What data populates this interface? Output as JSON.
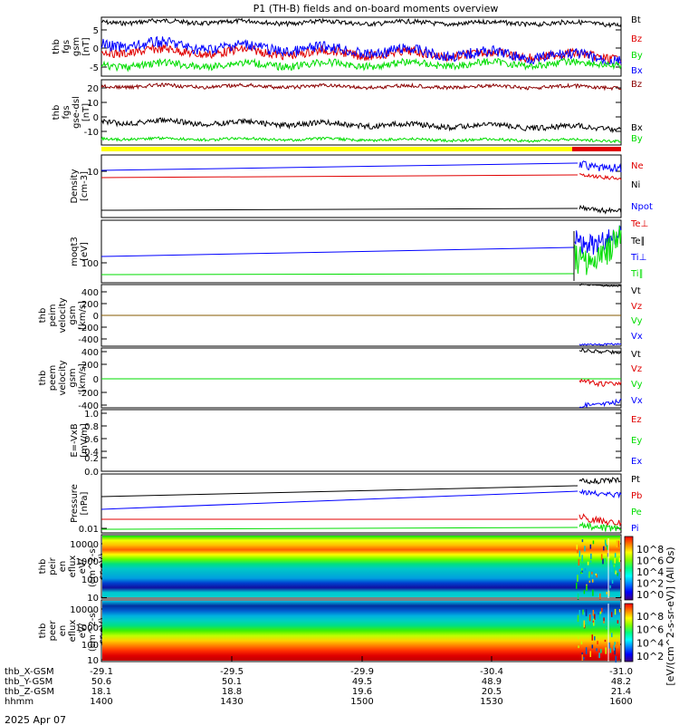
{
  "title": "P1 (TH-B) fields and on-board moments overview",
  "date_label": "2025 Apr 07",
  "colors": {
    "black": "#000000",
    "red": "#e00000",
    "green": "#00dd00",
    "blue": "#0000ff",
    "darkred": "#8b0000",
    "yellow": "#ffff00"
  },
  "chart_data": [
    {
      "type": "line",
      "ylabel": [
        "thb",
        "fgs",
        "gsm",
        "[nT]"
      ],
      "ylim": [
        -6,
        9
      ],
      "ticks": [
        "5",
        "0",
        "-5"
      ],
      "series": [
        {
          "name": "Bt",
          "color": "black",
          "level": 7
        },
        {
          "name": "Bz",
          "color": "red",
          "level": 0
        },
        {
          "name": "By",
          "color": "green",
          "level": -4
        },
        {
          "name": "Bx",
          "color": "blue",
          "level": -1
        }
      ]
    },
    {
      "type": "line",
      "ylabel": [
        "thb",
        "fgs",
        "gse-dsl",
        "[nT]"
      ],
      "ylim": [
        -19,
        27
      ],
      "ticks": [
        "20",
        "10",
        "0",
        "-10"
      ],
      "series": [
        {
          "name": "Bz",
          "color": "darkred",
          "level": 22
        },
        {
          "name": "Bx",
          "color": "black",
          "level": -7
        },
        {
          "name": "By",
          "color": "green",
          "level": -16
        }
      ]
    },
    {
      "type": "line",
      "ylabel": [
        "Density",
        "[cm-3]"
      ],
      "scale": "log",
      "ticks": [
        "10"
      ],
      "series": [
        {
          "name": "Ne",
          "color": "red",
          "level": 8
        },
        {
          "name": "Ni",
          "color": "black",
          "level": 2
        },
        {
          "name": "Npot",
          "color": "blue",
          "level": 10
        }
      ]
    },
    {
      "type": "line",
      "ylabel": [
        "moqt3",
        "[eV]"
      ],
      "scale": "log",
      "ticks": [
        "100"
      ],
      "series": [
        {
          "name": "Te⊥",
          "color": "red"
        },
        {
          "name": "Te∥",
          "color": "black"
        },
        {
          "name": "Ti⊥",
          "color": "blue",
          "level": 110
        },
        {
          "name": "Ti∥",
          "color": "green",
          "level": 80
        }
      ]
    },
    {
      "type": "line",
      "ylabel": [
        "thb",
        "peim",
        "velocity",
        "gsm",
        "[km/s]"
      ],
      "ylim": [
        -500,
        500
      ],
      "ticks": [
        "400",
        "200",
        "0",
        "-200",
        "-400"
      ],
      "series": [
        {
          "name": "Vt",
          "color": "black"
        },
        {
          "name": "Vz",
          "color": "red",
          "level": 0
        },
        {
          "name": "Vy",
          "color": "green",
          "level": 0
        },
        {
          "name": "Vx",
          "color": "blue"
        }
      ]
    },
    {
      "type": "line",
      "ylabel": [
        "thb",
        "peem",
        "velocity",
        "gsm",
        "[km/s]"
      ],
      "ylim": [
        -500,
        500
      ],
      "ticks": [
        "400",
        "200",
        "0",
        "-200",
        "-400"
      ],
      "series": [
        {
          "name": "Vt",
          "color": "black",
          "level": 430
        },
        {
          "name": "Vz",
          "color": "red",
          "level": 0
        },
        {
          "name": "Vy",
          "color": "green",
          "level": 0
        },
        {
          "name": "Vx",
          "color": "blue",
          "level": -430
        }
      ]
    },
    {
      "type": "line",
      "ylabel": [
        "E=-VxB",
        "[mV/m]"
      ],
      "ylim": [
        -0.1,
        1.0
      ],
      "ticks": [
        "1.0",
        "0.8",
        "0.6",
        "0.4",
        "0.2",
        "0.0"
      ],
      "series": [
        {
          "name": "Ez",
          "color": "red"
        },
        {
          "name": "Ey",
          "color": "green"
        },
        {
          "name": "Ex",
          "color": "blue"
        }
      ]
    },
    {
      "type": "line",
      "ylabel": [
        "Pressure",
        "[nPa]"
      ],
      "scale": "log",
      "ticks": [
        "0.01"
      ],
      "series": [
        {
          "name": "Pt",
          "color": "black"
        },
        {
          "name": "Pb",
          "color": "red"
        },
        {
          "name": "Pe",
          "color": "green"
        },
        {
          "name": "Pi",
          "color": "blue"
        }
      ]
    },
    {
      "type": "heatmap",
      "ylabel": [
        "thb",
        "peir",
        "en",
        "eflux",
        "eV/",
        "(cm^2-s-",
        "sr-eV)"
      ],
      "ticks": [
        "10000",
        "1000",
        "100",
        "10"
      ]
    },
    {
      "type": "heatmap",
      "ylabel": [
        "thb",
        "peer",
        "en",
        "eflux",
        "eV/",
        "(cm^2-s-",
        "sr-eV)"
      ],
      "ticks": [
        "10000",
        "1000",
        "100",
        "10"
      ]
    }
  ],
  "colorbar": {
    "label": "[eV/(cm^2-s-sr-eV)] (All Qs)",
    "ticks": [
      "10^8",
      "10^6",
      "10^4",
      "10^2",
      "10^0"
    ],
    "ticks2": [
      "10^8",
      "10^6",
      "10^4",
      "10^2"
    ]
  },
  "x_axis": {
    "rows": [
      {
        "label": "thb_X-GSM",
        "values": [
          "-29.1",
          "-29.5",
          "-29.9",
          "-30.4",
          "-31.0"
        ]
      },
      {
        "label": "thb_Y-GSM",
        "values": [
          "50.6",
          "50.1",
          "49.5",
          "48.9",
          "48.2"
        ]
      },
      {
        "label": "thb_Z-GSM",
        "values": [
          "18.1",
          "18.8",
          "19.6",
          "20.5",
          "21.4"
        ]
      },
      {
        "label": "hhmm",
        "values": [
          "1400",
          "1430",
          "1500",
          "1530",
          "1600"
        ]
      }
    ]
  }
}
